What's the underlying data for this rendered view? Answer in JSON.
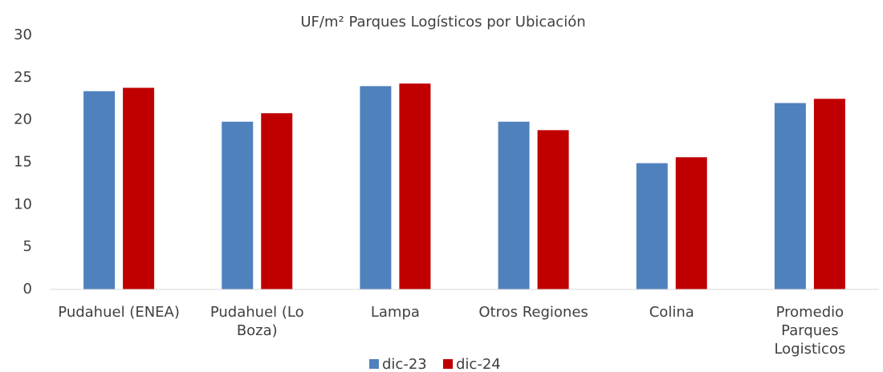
{
  "chart_data": {
    "type": "bar",
    "title": "UF/m² Parques Logísticos por Ubicación",
    "categories": [
      "Pudahuel (ENEA)",
      "Pudahuel (Lo Boza)",
      "Lampa",
      "Otros Regiones",
      "Colina",
      "Promedio Parques Logisticos"
    ],
    "series": [
      {
        "name": "dic-23",
        "color": "#4f81bd",
        "values": [
          23.4,
          19.8,
          24.0,
          19.8,
          14.9,
          22.0
        ]
      },
      {
        "name": "dic-24",
        "color": "#c00000",
        "values": [
          23.8,
          20.8,
          24.3,
          18.8,
          15.6,
          22.5
        ]
      }
    ],
    "ylim": [
      0,
      30
    ],
    "yticks": [
      0,
      5,
      10,
      15,
      20,
      25,
      30
    ],
    "grid": false,
    "legend": "bottom"
  }
}
